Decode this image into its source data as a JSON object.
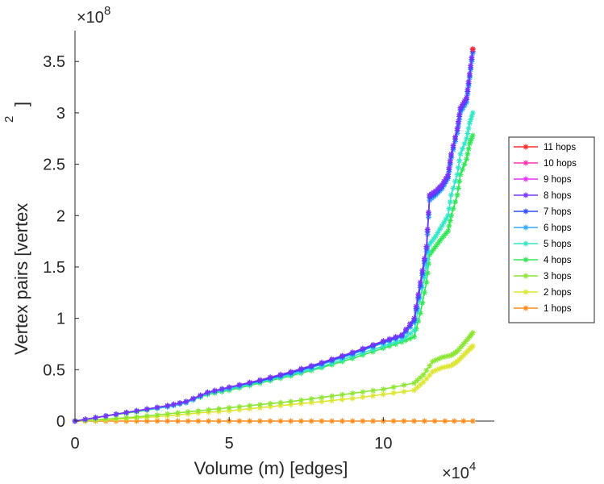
{
  "chart_data": {
    "type": "line",
    "title": "",
    "xlabel": "Volume (m) [edges]",
    "ylabel": "Vertex pairs [vertex",
    "ylabel_superscript": "2",
    "ylabel_close": "]",
    "x_multiplier": "×10",
    "x_exponent": "4",
    "y_multiplier": "×10",
    "y_exponent": "8",
    "xlim": [
      0,
      13.6
    ],
    "ylim": [
      0,
      3.8
    ],
    "x_units_note": "x values in units of 10^4 edges, y values in units of 10^8 vertex^2",
    "xticks": [
      0,
      5,
      10
    ],
    "xtick_labels": [
      "0",
      "5",
      "10"
    ],
    "yticks": [
      0,
      0.5,
      1,
      1.5,
      2,
      2.5,
      3,
      3.5
    ],
    "ytick_labels": [
      "0",
      "0.5",
      "1",
      "1.5",
      "2",
      "2.5",
      "3",
      "3.5"
    ],
    "legend_position": "right-outside",
    "marker": "asterisk",
    "series": [
      {
        "name": "11 hops",
        "color": "#ff2a2a",
        "x": [
          12.9
        ],
        "y": [
          3.62
        ]
      },
      {
        "name": "10 hops",
        "color": "#ff33b0",
        "x": [
          12.9
        ],
        "y": [
          3.62
        ]
      },
      {
        "name": "9 hops",
        "color": "#e633ff",
        "x": [
          12.9
        ],
        "y": [
          3.62
        ]
      },
      {
        "name": "8 hops",
        "color": "#7a33ff",
        "x": [
          0,
          1,
          2,
          3,
          3.6,
          4.3,
          5,
          6,
          7,
          8,
          9,
          10,
          10.6,
          11,
          11.2,
          11.4,
          11.5,
          11.7,
          11.9,
          12.1,
          12.2,
          12.4,
          12.5,
          12.7,
          12.8,
          12.9
        ],
        "y": [
          0,
          0.05,
          0.1,
          0.15,
          0.19,
          0.28,
          0.33,
          0.4,
          0.48,
          0.57,
          0.67,
          0.78,
          0.84,
          1.0,
          1.35,
          1.7,
          2.2,
          2.24,
          2.3,
          2.4,
          2.6,
          2.85,
          3.05,
          3.15,
          3.38,
          3.62
        ]
      },
      {
        "name": "7 hops",
        "color": "#2e4dff",
        "x": [
          0,
          1,
          2,
          3,
          3.6,
          4.3,
          5,
          6,
          7,
          8,
          9,
          10,
          10.6,
          11,
          11.2,
          11.4,
          11.5,
          11.7,
          11.9,
          12.1,
          12.2,
          12.4,
          12.5,
          12.7,
          12.8,
          12.9
        ],
        "y": [
          0,
          0.05,
          0.1,
          0.15,
          0.19,
          0.28,
          0.33,
          0.39,
          0.47,
          0.56,
          0.66,
          0.77,
          0.83,
          0.98,
          1.32,
          1.68,
          2.18,
          2.22,
          2.28,
          2.38,
          2.58,
          2.83,
          3.03,
          3.13,
          3.36,
          3.6
        ]
      },
      {
        "name": "6 hops",
        "color": "#33a8ff",
        "x": [
          0,
          1,
          2,
          3,
          3.6,
          4.3,
          5,
          6,
          7,
          8,
          9,
          10,
          10.6,
          11,
          11.2,
          11.4,
          11.5,
          11.7,
          11.9,
          12.1,
          12.2,
          12.4,
          12.5,
          12.7,
          12.8,
          12.9
        ],
        "y": [
          0,
          0.05,
          0.1,
          0.14,
          0.18,
          0.27,
          0.32,
          0.39,
          0.46,
          0.55,
          0.65,
          0.76,
          0.82,
          0.96,
          1.3,
          1.65,
          2.15,
          2.2,
          2.26,
          2.36,
          2.56,
          2.8,
          3.0,
          3.1,
          3.34,
          3.58
        ]
      },
      {
        "name": "5 hops",
        "color": "#33e6c8",
        "x": [
          0,
          1,
          2,
          3,
          3.6,
          4.3,
          5,
          6,
          7,
          8,
          9,
          10,
          10.6,
          11,
          11.2,
          11.4,
          11.5,
          11.7,
          11.9,
          12.1,
          12.2,
          12.4,
          12.5,
          12.7,
          12.8,
          12.9
        ],
        "y": [
          0,
          0.05,
          0.1,
          0.14,
          0.18,
          0.27,
          0.31,
          0.38,
          0.45,
          0.53,
          0.63,
          0.73,
          0.79,
          0.88,
          1.2,
          1.5,
          1.72,
          1.8,
          1.9,
          2.0,
          2.2,
          2.4,
          2.6,
          2.75,
          2.9,
          3.0
        ]
      },
      {
        "name": "4 hops",
        "color": "#33e655",
        "x": [
          0,
          1,
          2,
          3,
          3.6,
          4.3,
          5,
          6,
          7,
          8,
          9,
          10,
          10.6,
          11,
          11.2,
          11.4,
          11.5,
          11.7,
          11.9,
          12.1,
          12.2,
          12.4,
          12.5,
          12.7,
          12.8,
          12.9
        ],
        "y": [
          0,
          0.05,
          0.09,
          0.14,
          0.18,
          0.26,
          0.3,
          0.37,
          0.44,
          0.52,
          0.61,
          0.71,
          0.77,
          0.82,
          1.05,
          1.35,
          1.62,
          1.7,
          1.78,
          1.85,
          2.0,
          2.2,
          2.4,
          2.55,
          2.7,
          2.78
        ]
      },
      {
        "name": "3 hops",
        "color": "#8ce633",
        "x": [
          0,
          1,
          2,
          3,
          4,
          5,
          6,
          7,
          8,
          9,
          10,
          11,
          11.3,
          11.6,
          11.9,
          12.2,
          12.4,
          12.6,
          12.8,
          12.9
        ],
        "y": [
          0,
          0.02,
          0.04,
          0.07,
          0.1,
          0.13,
          0.16,
          0.19,
          0.23,
          0.27,
          0.31,
          0.37,
          0.45,
          0.58,
          0.62,
          0.64,
          0.68,
          0.75,
          0.82,
          0.86
        ]
      },
      {
        "name": "2 hops",
        "color": "#dde633",
        "x": [
          0,
          1,
          2,
          3,
          4,
          5,
          6,
          7,
          8,
          9,
          10,
          11,
          11.3,
          11.6,
          11.9,
          12.2,
          12.4,
          12.6,
          12.8,
          12.9
        ],
        "y": [
          0,
          0.01,
          0.03,
          0.05,
          0.08,
          0.1,
          0.13,
          0.16,
          0.19,
          0.22,
          0.26,
          0.3,
          0.38,
          0.48,
          0.52,
          0.54,
          0.58,
          0.64,
          0.7,
          0.73
        ]
      },
      {
        "name": "1 hops",
        "color": "#ff8c1a",
        "x": [
          0,
          1,
          2,
          3,
          4,
          5,
          6,
          7,
          8,
          9,
          10,
          11,
          12,
          12.9
        ],
        "y": [
          0,
          0,
          0,
          0,
          0,
          0,
          0,
          0,
          0,
          0,
          0,
          0,
          0,
          0
        ]
      }
    ]
  }
}
